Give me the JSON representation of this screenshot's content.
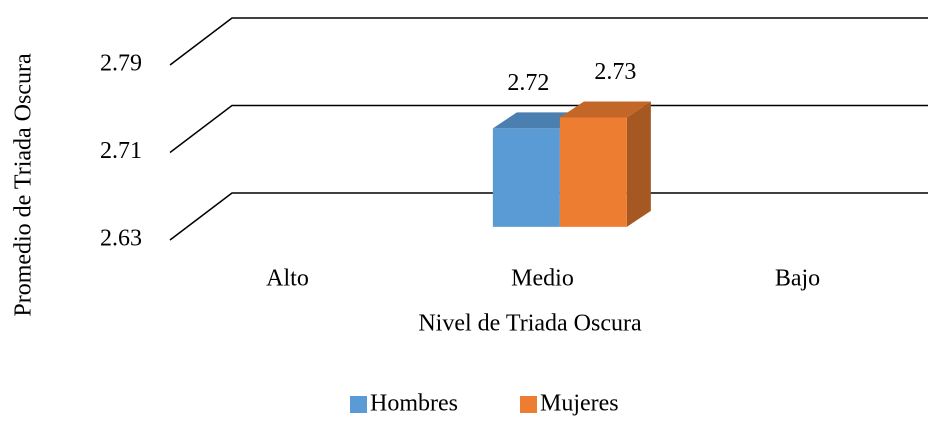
{
  "chart_data": {
    "type": "bar3d",
    "categories": [
      "Alto",
      "Medio",
      "Bajo"
    ],
    "series": [
      {
        "name": "Hombres",
        "color": "#5b9bd5",
        "values": [
          null,
          2.72,
          null
        ]
      },
      {
        "name": "Mujeres",
        "color": "#ed7d31",
        "values": [
          null,
          2.73,
          null
        ]
      }
    ],
    "ylim": [
      2.63,
      2.79
    ],
    "yticks": [
      2.63,
      2.71,
      2.79
    ],
    "grid": true,
    "xlabel": "Nivel de Triada Oscura",
    "ylabel": "Promedio de Triada Oscura",
    "legend": "bottom",
    "data_labels": true
  }
}
